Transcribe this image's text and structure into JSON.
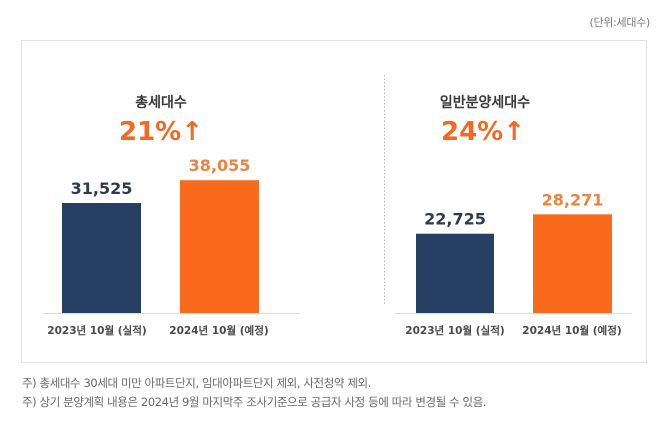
{
  "unit_label": "(단위:세대수)",
  "colors": {
    "navy": "#273f63",
    "orange": "#fa6a1c",
    "value_navy": "#2f3a4d",
    "value_orange": "#f0823f",
    "title": "#3a3a3a",
    "growth": "#f06a24",
    "axis_label": "#4a4a4a"
  },
  "chart_data": [
    {
      "type": "bar",
      "title": "총세대수",
      "growth_label": "21%",
      "growth_arrow": "↑",
      "categories": [
        "2023년 10월 (실적)",
        "2024년 10월 (예정)"
      ],
      "values": [
        31525,
        38055
      ],
      "value_labels": [
        "31,525",
        "38,055"
      ],
      "ylabel": "세대수",
      "ylim": [
        0,
        90000
      ],
      "grid": false
    },
    {
      "type": "bar",
      "title": "일반분양세대수",
      "growth_label": "24%",
      "growth_arrow": "↑",
      "categories": [
        "2023년 10월 (실적)",
        "2024년 10월 (예정)"
      ],
      "values": [
        22725,
        28271
      ],
      "value_labels": [
        "22,725",
        "28,271"
      ],
      "ylabel": "세대수",
      "ylim": [
        0,
        90000
      ],
      "grid": false
    }
  ],
  "footnotes": [
    "주) 총세대수 30세대 미만 아파트단지, 임대아파트단지 제외, 사전청약 제외.",
    "주) 상기 분양계획 내용은 2024년 9월 마지막주  조사기준으로 공급자 사정 등에 따라 변경될 수 있음."
  ]
}
